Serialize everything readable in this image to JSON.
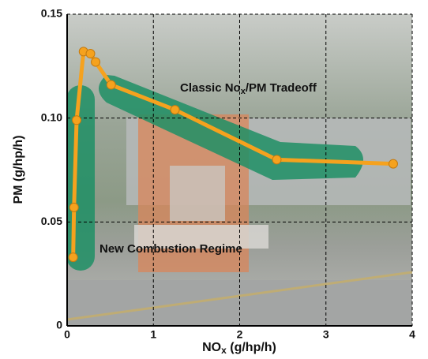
{
  "chart_data": {
    "type": "line",
    "x_label": [
      "NO",
      "x",
      " (g/hp/h)"
    ],
    "y_label": "PM (g/hp/h)",
    "annotations": [
      [
        "Classic No",
        "x",
        "/PM Tradeoff"
      ],
      [
        "New Combustion Regime"
      ]
    ],
    "series": [
      {
        "color": "#f5a21e",
        "x": [
          0.07,
          0.08,
          0.11,
          0.19,
          0.27,
          0.33,
          0.51,
          1.25,
          2.43,
          3.78
        ],
        "values": [
          0.033,
          0.057,
          0.099,
          0.132,
          0.131,
          0.127,
          0.116,
          0.104,
          0.08,
          0.078
        ]
      }
    ],
    "xlim": [
      0,
      4
    ],
    "xticks": [
      0,
      1,
      2,
      3,
      4
    ],
    "ylim": [
      0,
      0.15
    ],
    "yticks": [
      0,
      0.05,
      {
        "value": 0.1,
        "label": "0.10"
      },
      0.15
    ],
    "grid": true
  }
}
